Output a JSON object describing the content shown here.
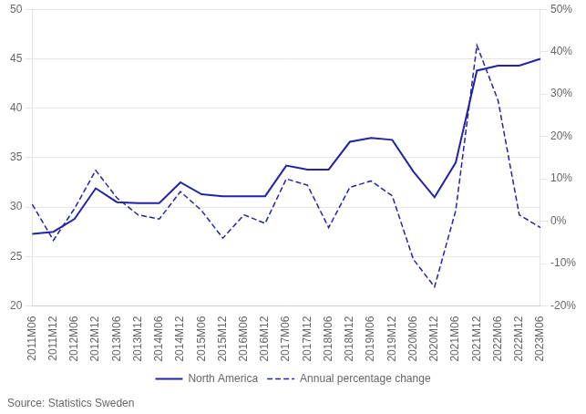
{
  "chart_data": {
    "type": "line",
    "categories": [
      "2011M06",
      "2011M12",
      "2012M06",
      "2012M12",
      "2013M06",
      "2013M12",
      "2014M06",
      "2014M12",
      "2015M06",
      "2015M12",
      "2016M06",
      "2016M12",
      "2017M06",
      "2017M12",
      "2018M06",
      "2018M12",
      "2019M06",
      "2019M12",
      "2020M06",
      "2020M12",
      "2021M06",
      "2021M12",
      "2022M06",
      "2022M12",
      "2023M06"
    ],
    "series": [
      {
        "name": "North America",
        "color": "#2323a8",
        "line_style": "solid",
        "axis": "y",
        "values": [
          27.3,
          27.5,
          28.8,
          31.9,
          30.5,
          30.4,
          30.4,
          32.5,
          31.3,
          31.1,
          31.1,
          31.1,
          34.2,
          33.8,
          33.8,
          36.6,
          37.0,
          36.8,
          33.6,
          31.0,
          34.5,
          43.8,
          44.3,
          44.3,
          45.0
        ]
      },
      {
        "name": "Annual percentage change",
        "color": "#2323a8",
        "line_style": "dashed",
        "axis": "y2",
        "values": [
          4.0,
          -4.5,
          3.0,
          12.0,
          5.5,
          1.5,
          0.5,
          7.0,
          2.5,
          -4.0,
          1.5,
          -0.5,
          10.0,
          8.5,
          -1.5,
          8.0,
          9.5,
          6.0,
          -9.0,
          -15.5,
          2.5,
          41.5,
          28.5,
          1.5,
          -1.5
        ]
      }
    ],
    "ylim": [
      20,
      50
    ],
    "yticks": [
      20,
      25,
      30,
      35,
      40,
      45,
      50
    ],
    "y2lim": [
      -20,
      50
    ],
    "y2ticks": [
      {
        "value": -20,
        "label": "-20%"
      },
      {
        "value": -10,
        "label": "-10%"
      },
      {
        "value": 0,
        "label": "0%"
      },
      {
        "value": 10,
        "label": "10%"
      },
      {
        "value": 20,
        "label": "20%"
      },
      {
        "value": 30,
        "label": "30%"
      },
      {
        "value": 40,
        "label": "40%"
      },
      {
        "value": 50,
        "label": "50%"
      }
    ],
    "grid": true,
    "legend": "bottom",
    "annotations": [
      "Source: Statistics Sweden"
    ]
  }
}
